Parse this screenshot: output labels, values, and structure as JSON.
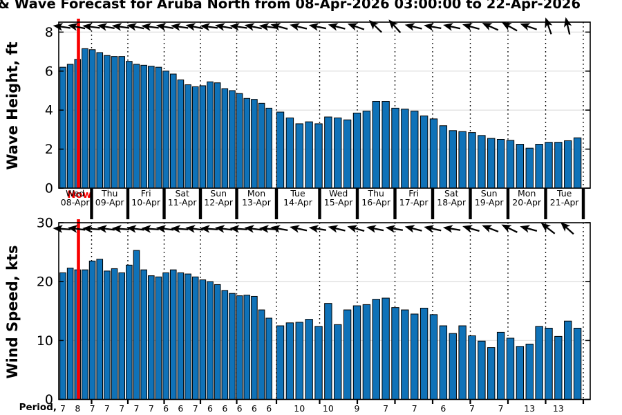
{
  "title": "& Wave Forecast for Aruba North from 08-Apr-2026 03:00:00 to 22-Apr-2026",
  "now_label": "Now",
  "period_row": {
    "label": "Period, sec",
    "dense_values": [
      7,
      8,
      7,
      7,
      7,
      7,
      7,
      6,
      6,
      7,
      6,
      6,
      6,
      6,
      6
    ],
    "sparse_values": [
      10,
      10,
      9,
      7,
      7,
      6,
      7,
      7,
      13,
      13
    ]
  },
  "days": [
    {
      "weekday": "Wed",
      "date": "08-Apr"
    },
    {
      "weekday": "Thu",
      "date": "09-Apr"
    },
    {
      "weekday": "Fri",
      "date": "10-Apr"
    },
    {
      "weekday": "Sat",
      "date": "11-Apr"
    },
    {
      "weekday": "Sun",
      "date": "12-Apr"
    },
    {
      "weekday": "Mon",
      "date": "13-Apr"
    },
    {
      "weekday": "Tue",
      "date": "14-Apr"
    },
    {
      "weekday": "Wed",
      "date": "15-Apr"
    },
    {
      "weekday": "Thu",
      "date": "16-Apr"
    },
    {
      "weekday": "Fri",
      "date": "17-Apr"
    },
    {
      "weekday": "Sat",
      "date": "18-Apr"
    },
    {
      "weekday": "Sun",
      "date": "19-Apr"
    },
    {
      "weekday": "Mon",
      "date": "20-Apr"
    },
    {
      "weekday": "Tue",
      "date": "21-Apr"
    }
  ],
  "colors": {
    "bar": "#0f72b8",
    "bar_edge": "#000000",
    "now_line": "#f80000",
    "grid": "#dcdcdc",
    "axis": "#000000",
    "background": "#ffffff"
  },
  "chart_data": [
    {
      "type": "bar",
      "name": "wave-height",
      "ylabel": "Wave Height, ft",
      "ylim": [
        0,
        8.5
      ],
      "yticks": [
        0,
        2,
        4,
        6,
        8
      ],
      "grid": true,
      "legend": null,
      "categories": [
        "Wed 08-Apr",
        "Thu 09-Apr",
        "Fri 10-Apr",
        "Sat 11-Apr",
        "Sun 12-Apr",
        "Mon 13-Apr",
        "Tue 14-Apr",
        "Wed 15-Apr",
        "Thu 16-Apr",
        "Fri 17-Apr",
        "Sat 18-Apr",
        "Sun 19-Apr",
        "Mon 20-Apr",
        "Tue 21-Apr"
      ],
      "values_dense_segment": [
        6.2,
        6.35,
        6.6,
        7.15,
        7.1,
        6.95,
        6.8,
        6.75,
        6.75,
        6.5,
        6.35,
        6.3,
        6.25,
        6.2,
        6.0,
        5.85,
        5.55,
        5.3,
        5.2,
        5.25,
        5.45,
        5.4,
        5.1,
        5.0,
        4.85,
        4.6,
        4.55,
        4.35,
        4.1
      ],
      "values_sparse_segment": [
        3.9,
        3.6,
        3.3,
        3.4,
        3.3,
        3.65,
        3.6,
        3.5,
        3.85,
        3.95,
        4.45,
        4.45,
        4.1,
        4.05,
        3.95,
        3.7,
        3.55,
        3.2,
        2.95,
        2.9,
        2.85,
        2.7,
        2.55,
        2.5,
        2.45,
        2.25,
        2.05,
        2.25,
        2.35,
        2.35,
        2.43,
        2.58
      ],
      "arrow_directions_deg": [
        188,
        191,
        187,
        190,
        188,
        191,
        187,
        190,
        188,
        191,
        187,
        190,
        188,
        191,
        188,
        195,
        193,
        191,
        194,
        199,
        224,
        228,
        193,
        190,
        192,
        195,
        204,
        209,
        199,
        251,
        257
      ]
    },
    {
      "type": "bar",
      "name": "wind-speed",
      "ylabel": "Wind Speed, kts",
      "ylim": [
        0,
        30
      ],
      "yticks": [
        0,
        10,
        20,
        30
      ],
      "grid": true,
      "legend": null,
      "categories": [
        "Wed 08-Apr",
        "Thu 09-Apr",
        "Fri 10-Apr",
        "Sat 11-Apr",
        "Sun 12-Apr",
        "Mon 13-Apr",
        "Tue 14-Apr",
        "Wed 15-Apr",
        "Thu 16-Apr",
        "Fri 17-Apr",
        "Sat 18-Apr",
        "Sun 19-Apr",
        "Mon 20-Apr",
        "Tue 21-Apr"
      ],
      "values_dense_segment": [
        21.5,
        22.3,
        22.0,
        22.0,
        23.5,
        23.8,
        21.8,
        22.2,
        21.5,
        22.8,
        25.3,
        22.0,
        21.0,
        20.8,
        21.5,
        22.0,
        21.5,
        21.3,
        20.8,
        20.3,
        20.0,
        19.5,
        18.5,
        18.0,
        17.6,
        17.7,
        17.5,
        15.2,
        13.8
      ],
      "values_sparse_segment": [
        12.5,
        13.0,
        13.1,
        13.6,
        12.4,
        16.3,
        12.7,
        15.2,
        15.9,
        16.1,
        17.0,
        17.2,
        15.6,
        15.2,
        14.5,
        15.5,
        14.4,
        12.5,
        11.2,
        12.5,
        10.8,
        9.9,
        8.8,
        11.4,
        10.4,
        9.0,
        9.4,
        12.4,
        12.1,
        10.7,
        13.3,
        12.1
      ],
      "arrow_directions_deg": [
        184,
        187,
        184,
        187,
        184,
        187,
        184,
        187,
        184,
        187,
        184,
        187,
        184,
        187,
        184,
        190,
        192,
        189,
        193,
        195,
        191,
        189,
        194,
        192,
        189,
        196,
        201,
        206,
        195,
        218,
        222
      ]
    }
  ]
}
